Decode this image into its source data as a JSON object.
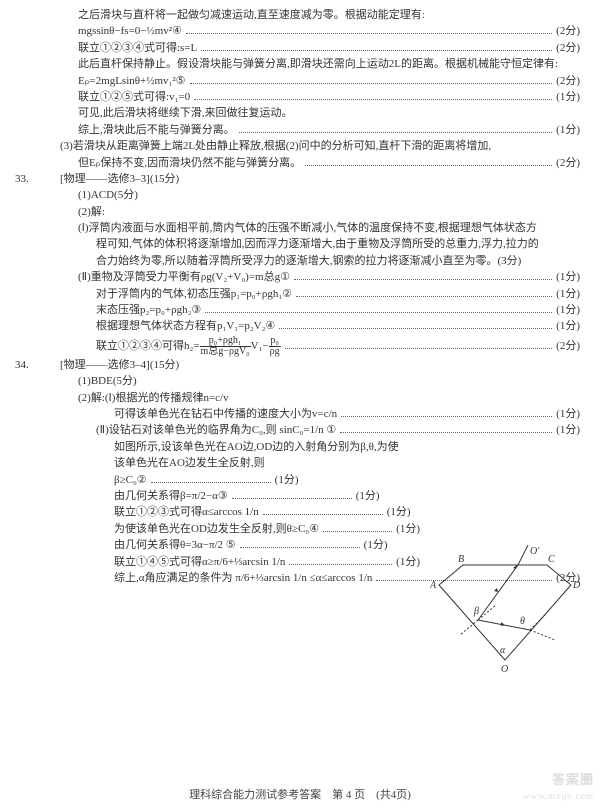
{
  "lines": [
    {
      "cls": "indent1",
      "text": "之后滑块与直杆将一起做匀减速运动,直至速度减为零。根据动能定理有:",
      "score": ""
    },
    {
      "cls": "indent1",
      "text": "mgssinθ−fs=0−½mv²④",
      "score": "(2分)"
    },
    {
      "cls": "indent1",
      "text": "联立①②③④式可得:s=L",
      "score": "(2分)"
    },
    {
      "cls": "indent1",
      "text": "此后直杆保持静止。假设滑块能与弹簧分离,即滑块还需向上运动2L的距离。根据机械能守恒定律有:",
      "score": ""
    },
    {
      "cls": "indent1",
      "text": "Eₚ=2mgLsinθ+½mv₁²⑤",
      "score": "(2分)"
    },
    {
      "cls": "indent1",
      "text": "联立①②⑤式可得:v₁=0",
      "score": "(1分)"
    },
    {
      "cls": "indent1",
      "text": "可见,此后滑块将继续下滑,来回做往复运动。",
      "score": ""
    },
    {
      "cls": "indent1",
      "text": "综上,滑块此后不能与弹簧分离。",
      "score": "(1分)"
    },
    {
      "cls": "",
      "text": "(3)若滑块从距离弹簧上端2L处由静止释放,根据(2)问中的分析可知,直杆下滑的距离将增加,",
      "score": ""
    },
    {
      "cls": "indent1",
      "text": "但Eₚ保持不变,因而滑块仍然不能与弹簧分离。",
      "score": "(2分)"
    }
  ],
  "q33": {
    "num": "33.",
    "title": "[物理——选修3–3](15分)",
    "part1": "(1)ACD(5分)",
    "part2": "(2)解:",
    "body": [
      {
        "cls": "indent1",
        "text": "(Ⅰ)浮筒内液面与水面相平前,筒内气体的压强不断减小,气体的温度保持不变,根据理想气体状态方",
        "score": ""
      },
      {
        "cls": "indent2",
        "text": "程可知,气体的体积将逐渐增加,因而浮力逐渐增大,由于重物及浮筒所受的总重力,浮力,拉力的",
        "score": ""
      },
      {
        "cls": "indent2",
        "text": "合力始终为零,所以随着浮筒所受浮力的逐渐增大,钢索的拉力将逐渐减小直至为零。(3分)",
        "score": ""
      },
      {
        "cls": "indent1",
        "text": "(Ⅱ)重物及浮筒受力平衡有ρg(V₂+V₀)=m总g①",
        "score": "(1分)"
      },
      {
        "cls": "indent2",
        "text": "对于浮筒内的气体,初态压强p₁=p₀+ρgh₁②",
        "score": "(1分)"
      },
      {
        "cls": "indent2",
        "text": "末态压强p₂=p₀+ρgh₂③",
        "score": "(1分)"
      },
      {
        "cls": "indent2",
        "text": "根据理想气体状态方程有p₁V₁=p₂V₂④",
        "score": "(1分)"
      },
      {
        "cls": "indent2 frac-line",
        "text": "联立①②③④可得h₂=FRAC1",
        "score": "(2分)"
      }
    ]
  },
  "q34": {
    "num": "34.",
    "title": "[物理——选修3–4](15分)",
    "part1": "(1)BDE(5分)",
    "part2": "(2)解:(Ⅰ)根据光的传播规律n=c/v",
    "body": [
      {
        "cls": "indent3",
        "text": "可得该单色光在钻石中传播的速度大小为v=c/n",
        "score": "(1分)"
      },
      {
        "cls": "indent2",
        "text": "(Ⅱ)设钻石对该单色光的临界角为C₀,则 sinC₀=1/n ①",
        "score": "(1分)"
      },
      {
        "cls": "indent3 narrow",
        "text": "如图所示,设该单色光在AO边,OD边的入射角分别为β,θ,为使",
        "score": ""
      },
      {
        "cls": "indent3 narrow",
        "text": "该单色光在AO边发生全反射,则",
        "score": ""
      },
      {
        "cls": "indent3",
        "text": "β≥C₀②",
        "score2": "(1分)"
      },
      {
        "cls": "indent3",
        "text": "由几何关系得β=π/2−α③",
        "score2": "(1分)"
      },
      {
        "cls": "indent3",
        "text": "联立①②③式可得α≤arccos 1/n",
        "score2": "(1分)"
      },
      {
        "cls": "indent3",
        "text": "为使该单色光在OD边发生全反射,则θ≥C₀④",
        "score2": "(1分)"
      },
      {
        "cls": "indent3",
        "text": "由几何关系得θ=3α−π/2 ⑤",
        "score2": "(1分)"
      },
      {
        "cls": "indent3",
        "text": "联立①④⑤式可得α≥π/6+⅓arcsin 1/n",
        "score2": "(1分)"
      },
      {
        "cls": "indent3",
        "text": "综上,α角应满足的条件为 π/6+⅓arcsin 1/n ≤α≤arccos 1/n",
        "score": "(2分)"
      }
    ]
  },
  "footer": "理科综合能力测试参考答案　第 4 页　(共4页)",
  "watermark": "答案圈",
  "watermark2": "www.mxqe.com",
  "diagram": {
    "stroke": "#333333",
    "labels": {
      "B": "B",
      "C": "C",
      "A": "A",
      "D": "D",
      "O": "O",
      "Op": "O′",
      "beta": "β",
      "theta": "θ",
      "alpha": "α"
    }
  },
  "frac1": {
    "num": "p₀+ρgh₁",
    "den": "m总g−ρgV₀",
    "tail1": "V₁−",
    "num2": "p₀",
    "den2": "ρg"
  }
}
